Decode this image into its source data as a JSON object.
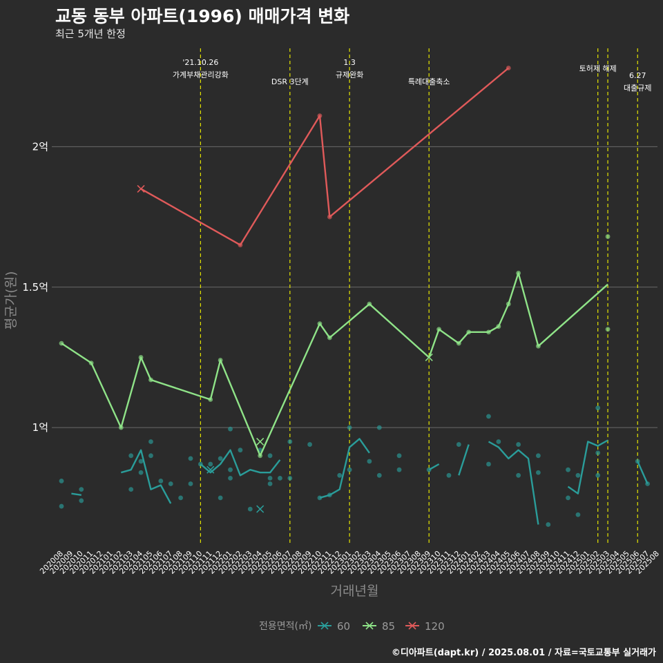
{
  "title": "교동 동부 아파트(1996) 매매가격 변화",
  "subtitle": "최근 5개년 한정",
  "caption": "©디아파트(dapt.kr) / 2025.08.01 / 자료=국토교통부 실거래가",
  "colors": {
    "background": "#2b2b2b",
    "grid": "#6b6b6b",
    "event_line": "#e6e600",
    "s60": "#2a9d9a",
    "s85": "#8fe388",
    "s120": "#e05a5a"
  },
  "chart_data": {
    "type": "line",
    "xlabel": "거래년월",
    "ylabel": "평균가(원)",
    "x_ticks": [
      "202008",
      "202009",
      "202010",
      "202011",
      "202012",
      "202101",
      "202102",
      "202103",
      "202104",
      "202105",
      "202106",
      "202107",
      "202108",
      "202109",
      "202110",
      "202111",
      "202112",
      "202201",
      "202202",
      "202203",
      "202204",
      "202205",
      "202206",
      "202207",
      "202208",
      "202209",
      "202210",
      "202211",
      "202212",
      "202301",
      "202302",
      "202303",
      "202304",
      "202305",
      "202306",
      "202307",
      "202308",
      "202309",
      "202310",
      "202311",
      "202312",
      "202401",
      "202402",
      "202403",
      "202404",
      "202405",
      "202406",
      "202407",
      "202408",
      "202409",
      "202410",
      "202411",
      "202412",
      "202501",
      "202502",
      "202503",
      "202504",
      "202505",
      "202506",
      "202507",
      "202508"
    ],
    "y_ticks": [
      {
        "value": 10000,
        "label": "1억"
      },
      {
        "value": 15000,
        "label": "1.5억"
      },
      {
        "value": 20000,
        "label": "2억"
      }
    ],
    "ylim": [
      5800,
      23500
    ],
    "y_unit": "만원",
    "legend": {
      "title": "전용면적(㎡)",
      "position": "bottom"
    },
    "events": [
      {
        "x": "202110",
        "lines": [
          "'21.10.26",
          "가계부채관리강화"
        ],
        "label_y": 1
      },
      {
        "x": "202207",
        "lines": [
          "DSR 3단계"
        ],
        "label_y": 2
      },
      {
        "x": "202301",
        "lines": [
          "1.3",
          "규제완화"
        ],
        "label_y": 1
      },
      {
        "x": "202309",
        "lines": [
          "특례대출축소"
        ],
        "label_y": 2
      },
      {
        "x": "202502",
        "lines": [
          "토허제 해제"
        ],
        "label_y": 1
      },
      {
        "x": "202503",
        "lines": [],
        "label_y": 1
      },
      {
        "x": "202506",
        "lines": [
          "6.27",
          "대출규제"
        ],
        "label_y": 2
      }
    ],
    "series": [
      {
        "name": "60",
        "color": "#2a9d9a",
        "line": [
          [
            [
              "202009",
              7650
            ],
            [
              "202010",
              7600
            ]
          ],
          [
            [
              "202102",
              8400
            ],
            [
              "202103",
              8500
            ],
            [
              "202104",
              9200
            ],
            [
              "202105",
              7800
            ],
            [
              "202106",
              7950
            ],
            [
              "202107",
              7300
            ]
          ],
          [
            [
              "202110",
              8700
            ],
            [
              "202111",
              8400
            ],
            [
              "202112",
              8700
            ],
            [
              "202201",
              9200
            ],
            [
              "202202",
              8300
            ],
            [
              "202203",
              8500
            ],
            [
              "202204",
              8400
            ],
            [
              "202205",
              8400
            ],
            [
              "202206",
              8850
            ]
          ],
          [
            [
              "202210",
              7500
            ],
            [
              "202211",
              7600
            ],
            [
              "202212",
              7800
            ],
            [
              "202301",
              9300
            ],
            [
              "202302",
              9600
            ],
            [
              "202303",
              9100
            ]
          ],
          [
            [
              "202309",
              8500
            ],
            [
              "202310",
              8700
            ]
          ],
          [
            [
              "202312",
              8300
            ],
            [
              "202401",
              9400
            ]
          ],
          [
            [
              "202403",
              9500
            ],
            [
              "202404",
              9300
            ],
            [
              "202405",
              8900
            ],
            [
              "202406",
              9200
            ],
            [
              "202407",
              8900
            ],
            [
              "202408",
              6550
            ]
          ],
          [
            [
              "202411",
              7900
            ],
            [
              "202412",
              7650
            ],
            [
              "202501",
              9500
            ],
            [
              "202502",
              9350
            ],
            [
              "202503",
              9550
            ]
          ],
          [
            [
              "202506",
              8800
            ],
            [
              "202507",
              8000
            ]
          ]
        ],
        "points": [
          [
            "202008",
            8100
          ],
          [
            "202008",
            7200
          ],
          [
            "202010",
            7800
          ],
          [
            "202010",
            7400
          ],
          [
            "202103",
            9000
          ],
          [
            "202103",
            7800
          ],
          [
            "202104",
            8800
          ],
          [
            "202104",
            8400
          ],
          [
            "202105",
            9000
          ],
          [
            "202105",
            9500
          ],
          [
            "202106",
            8100
          ],
          [
            "202107",
            8000
          ],
          [
            "202108",
            7500
          ],
          [
            "202109",
            8000
          ],
          [
            "202109",
            8900
          ],
          [
            "202110",
            8700
          ],
          [
            "202111",
            8700
          ],
          [
            "202112",
            8900
          ],
          [
            "202112",
            7500
          ],
          [
            "202201",
            8500
          ],
          [
            "202201",
            8200
          ],
          [
            "202201",
            9950
          ],
          [
            "202202",
            9200
          ],
          [
            "202203",
            7100
          ],
          [
            "202204",
            9200
          ],
          [
            "202205",
            8200
          ],
          [
            "202205",
            8000
          ],
          [
            "202205",
            9000
          ],
          [
            "202206",
            8200
          ],
          [
            "202207",
            9500
          ],
          [
            "202207",
            8200
          ],
          [
            "202209",
            9400
          ],
          [
            "202210",
            7500
          ],
          [
            "202211",
            7600
          ],
          [
            "202212",
            8300
          ],
          [
            "202301",
            8500
          ],
          [
            "202301",
            10000
          ],
          [
            "202303",
            8800
          ],
          [
            "202304",
            8300
          ],
          [
            "202304",
            10000
          ],
          [
            "202306",
            9000
          ],
          [
            "202306",
            8500
          ],
          [
            "202309",
            8500
          ],
          [
            "202311",
            8300
          ],
          [
            "202312",
            9400
          ],
          [
            "202403",
            10400
          ],
          [
            "202403",
            8700
          ],
          [
            "202404",
            9500
          ],
          [
            "202406",
            9400
          ],
          [
            "202406",
            8300
          ],
          [
            "202408",
            8400
          ],
          [
            "202408",
            9000
          ],
          [
            "202409",
            6550
          ],
          [
            "202411",
            8500
          ],
          [
            "202411",
            7500
          ],
          [
            "202412",
            6900
          ],
          [
            "202412",
            8300
          ],
          [
            "202502",
            10700
          ],
          [
            "202502",
            9100
          ],
          [
            "202502",
            8300
          ],
          [
            "202506",
            8800
          ],
          [
            "202507",
            8000
          ]
        ],
        "markers_x": [
          [
            "202111",
            8500
          ],
          [
            "202204",
            7100
          ]
        ]
      },
      {
        "name": "85",
        "color": "#8fe388",
        "line": [
          [
            [
              "202008",
              13000
            ],
            [
              "202011",
              12300
            ],
            [
              "202102",
              10000
            ],
            [
              "202104",
              12500
            ],
            [
              "202105",
              11700
            ],
            [
              "202111",
              11000
            ],
            [
              "202112",
              12400
            ],
            [
              "202204",
              9000
            ],
            [
              "202210",
              13700
            ],
            [
              "202211",
              13200
            ],
            [
              "202303",
              14400
            ],
            [
              "202309",
              12500
            ],
            [
              "202310",
              13500
            ],
            [
              "202312",
              13000
            ],
            [
              "202401",
              13400
            ],
            [
              "202403",
              13400
            ],
            [
              "202404",
              13600
            ],
            [
              "202405",
              14400
            ],
            [
              "202406",
              15500
            ],
            [
              "202408",
              12900
            ],
            [
              "202503",
              15100
            ]
          ]
        ],
        "points": [
          [
            "202008",
            13000
          ],
          [
            "202011",
            12300
          ],
          [
            "202102",
            10000
          ],
          [
            "202104",
            12500
          ],
          [
            "202105",
            11700
          ],
          [
            "202111",
            11000
          ],
          [
            "202112",
            12400
          ],
          [
            "202204",
            9000
          ],
          [
            "202210",
            13700
          ],
          [
            "202211",
            13200
          ],
          [
            "202303",
            14400
          ],
          [
            "202310",
            13500
          ],
          [
            "202312",
            13000
          ],
          [
            "202401",
            13400
          ],
          [
            "202403",
            13400
          ],
          [
            "202404",
            13600
          ],
          [
            "202405",
            14400
          ],
          [
            "202406",
            15500
          ],
          [
            "202408",
            12900
          ],
          [
            "202503",
            16800
          ],
          [
            "202503",
            13500
          ]
        ],
        "markers_x": [
          [
            "202204",
            9500
          ],
          [
            "202309",
            12500
          ]
        ]
      },
      {
        "name": "120",
        "color": "#e05a5a",
        "line": [
          [
            [
              "202104",
              18500
            ],
            [
              "202202",
              16500
            ],
            [
              "202210",
              21100
            ],
            [
              "202211",
              17500
            ],
            [
              "202405",
              22800
            ]
          ]
        ],
        "points": [
          [
            "202202",
            16500
          ],
          [
            "202210",
            21100
          ],
          [
            "202211",
            17500
          ],
          [
            "202405",
            22800
          ]
        ],
        "markers_x": [
          [
            "202104",
            18500
          ]
        ]
      }
    ]
  }
}
